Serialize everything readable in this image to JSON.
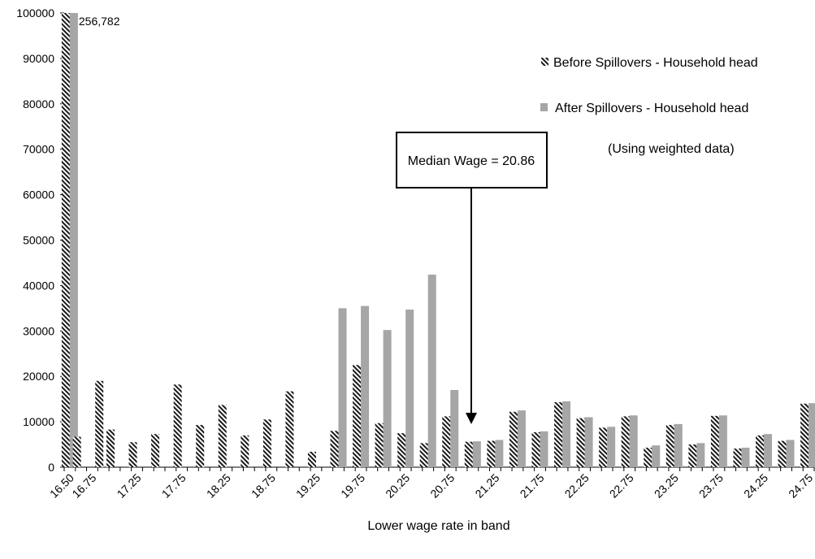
{
  "chart_data": {
    "type": "bar",
    "title": "",
    "xlabel": "Lower wage rate in band",
    "ylabel": "",
    "ylim": [
      0,
      100000
    ],
    "yticks": [
      0,
      10000,
      20000,
      30000,
      40000,
      50000,
      60000,
      70000,
      80000,
      90000,
      100000
    ],
    "categories": [
      "16.50",
      "16.625",
      "16.75",
      "16.875",
      "17.00",
      "17.125",
      "17.25",
      "17.375",
      "17.50",
      "17.625",
      "17.75",
      "17.875",
      "18.00",
      "18.125",
      "18.25",
      "18.375",
      "18.50",
      "18.625",
      "18.75",
      "18.875",
      "19.00",
      "19.125",
      "19.25",
      "19.375",
      "19.50",
      "19.625",
      "19.75",
      "19.875",
      "20.00",
      "20.125",
      "20.25",
      "20.375",
      "20.50",
      "20.625",
      "20.75",
      "20.875",
      "21.00",
      "21.125",
      "21.25",
      "21.375",
      "21.50",
      "21.625",
      "21.75",
      "21.875",
      "22.00",
      "22.125",
      "22.25",
      "22.375",
      "22.50",
      "22.625",
      "22.75",
      "22.875",
      "23.00",
      "23.125",
      "23.25",
      "23.375",
      "23.50",
      "23.625",
      "23.75",
      "23.875",
      "24.00",
      "24.125",
      "24.25",
      "24.375",
      "24.50",
      "24.625",
      "24.75"
    ],
    "visible_tick_labels": [
      "16.50",
      "16.75",
      "17.25",
      "17.75",
      "18.25",
      "18.75",
      "19.25",
      "19.75",
      "20.25",
      "20.75",
      "21.25",
      "21.75",
      "22.25",
      "22.75",
      "23.25",
      "23.75",
      "24.25",
      "24.75"
    ],
    "series": [
      {
        "name": "Before Spillovers - Household head",
        "color": "#1a1a1a",
        "pattern": "diagonal-hatch",
        "values": {
          "16.50": 256782,
          "16.625": 6700,
          "16.875": 19000,
          "17.00": 8300,
          "17.25": 5500,
          "17.50": 7300,
          "17.75": 18200,
          "18.00": 9300,
          "18.25": 13700,
          "18.50": 7000,
          "18.75": 10500,
          "19.00": 16700,
          "19.25": 3400,
          "19.50": 8000,
          "19.75": 22500,
          "20.00": 9700,
          "20.25": 7500,
          "20.50": 5300,
          "20.75": 11200,
          "21.00": 5600,
          "21.25": 5800,
          "21.50": 12200,
          "21.75": 7700,
          "22.00": 14300,
          "22.25": 10800,
          "22.50": 8700,
          "22.75": 11200,
          "23.00": 4300,
          "23.25": 9300,
          "23.50": 5000,
          "23.75": 11300,
          "24.00": 4100,
          "24.25": 7000,
          "24.50": 5800,
          "24.75": 14000
        }
      },
      {
        "name": "After Spillovers  - Household head",
        "color": "#a6a6a6",
        "pattern": "solid",
        "values": {
          "16.50": 256782,
          "19.50": 35000,
          "19.75": 35500,
          "20.00": 30200,
          "20.25": 34700,
          "20.50": 42400,
          "20.75": 17000,
          "21.00": 5700,
          "21.25": 6000,
          "21.50": 12500,
          "21.75": 7900,
          "22.00": 14500,
          "22.25": 11000,
          "22.50": 8900,
          "22.75": 11400,
          "23.00": 4800,
          "23.25": 9500,
          "23.50": 5300,
          "23.75": 11400,
          "24.00": 4300,
          "24.25": 7300,
          "24.50": 6000,
          "24.75": 14100
        }
      }
    ],
    "data_labels": [
      {
        "category": "16.50",
        "text": "256,782"
      }
    ],
    "legend": {
      "placement": "top-right",
      "items": [
        {
          "label": "Before Spillovers - Household head",
          "color": "#1a1a1a",
          "pattern": "diagonal-hatch"
        },
        {
          "label": "After Spillovers  - Household head",
          "color": "#a6a6a6",
          "pattern": "solid"
        }
      ],
      "note": "(Using weighted data)"
    },
    "annotation": {
      "text": "Median Wage = 20.86",
      "points_to": 20.86
    },
    "grid": false
  }
}
